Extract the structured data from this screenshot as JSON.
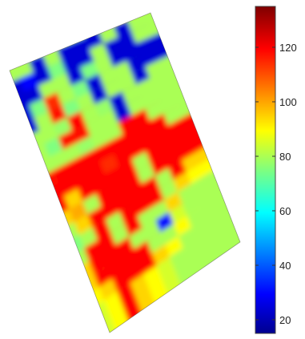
{
  "chart_data": {
    "type": "heatmap",
    "title": "",
    "xlabel": "",
    "ylabel": "",
    "colorbar": {
      "range": [
        15,
        135
      ],
      "ticks": [
        20,
        40,
        60,
        80,
        100,
        120
      ],
      "tick_labels": [
        "20",
        "40",
        "60",
        "80",
        "100",
        "120"
      ],
      "colormap": "jet"
    },
    "field_description_note_free": true,
    "grid": {
      "rows": 20,
      "cols": 10,
      "values": [
        [
          85,
          85,
          80,
          85,
          80,
          78,
          25,
          85,
          85,
          85
        ],
        [
          80,
          80,
          25,
          80,
          25,
          25,
          25,
          80,
          25,
          80
        ],
        [
          25,
          30,
          25,
          75,
          25,
          25,
          80,
          25,
          25,
          80
        ],
        [
          25,
          25,
          80,
          80,
          25,
          75,
          80,
          25,
          25,
          25
        ],
        [
          25,
          75,
          115,
          80,
          75,
          25,
          80,
          80,
          25,
          25
        ],
        [
          25,
          80,
          118,
          75,
          80,
          25,
          80,
          80,
          25,
          80
        ],
        [
          80,
          80,
          78,
          120,
          80,
          78,
          25,
          80,
          80,
          80
        ],
        [
          80,
          75,
          118,
          118,
          80,
          80,
          25,
          80,
          80,
          80
        ],
        [
          80,
          80,
          80,
          78,
          80,
          80,
          120,
          120,
          80,
          80
        ],
        [
          118,
          120,
          120,
          120,
          120,
          120,
          120,
          120,
          120,
          80
        ],
        [
          120,
          120,
          120,
          120,
          115,
          120,
          120,
          120,
          120,
          120
        ],
        [
          120,
          95,
          120,
          120,
          120,
          120,
          80,
          120,
          120,
          120
        ],
        [
          95,
          100,
          80,
          120,
          120,
          120,
          80,
          120,
          120,
          120
        ],
        [
          80,
          95,
          120,
          120,
          120,
          120,
          120,
          80,
          120,
          95
        ],
        [
          75,
          80,
          120,
          80,
          120,
          120,
          120,
          80,
          95,
          90
        ],
        [
          80,
          120,
          120,
          80,
          120,
          80,
          80,
          95,
          80,
          80
        ],
        [
          95,
          120,
          120,
          120,
          80,
          80,
          30,
          85,
          80,
          80
        ],
        [
          95,
          120,
          120,
          120,
          120,
          80,
          80,
          90,
          80,
          80
        ],
        [
          90,
          95,
          120,
          120,
          120,
          95,
          90,
          80,
          80,
          80
        ],
        [
          85,
          90,
          120,
          95,
          90,
          85,
          80,
          80,
          80,
          80
        ]
      ]
    }
  }
}
